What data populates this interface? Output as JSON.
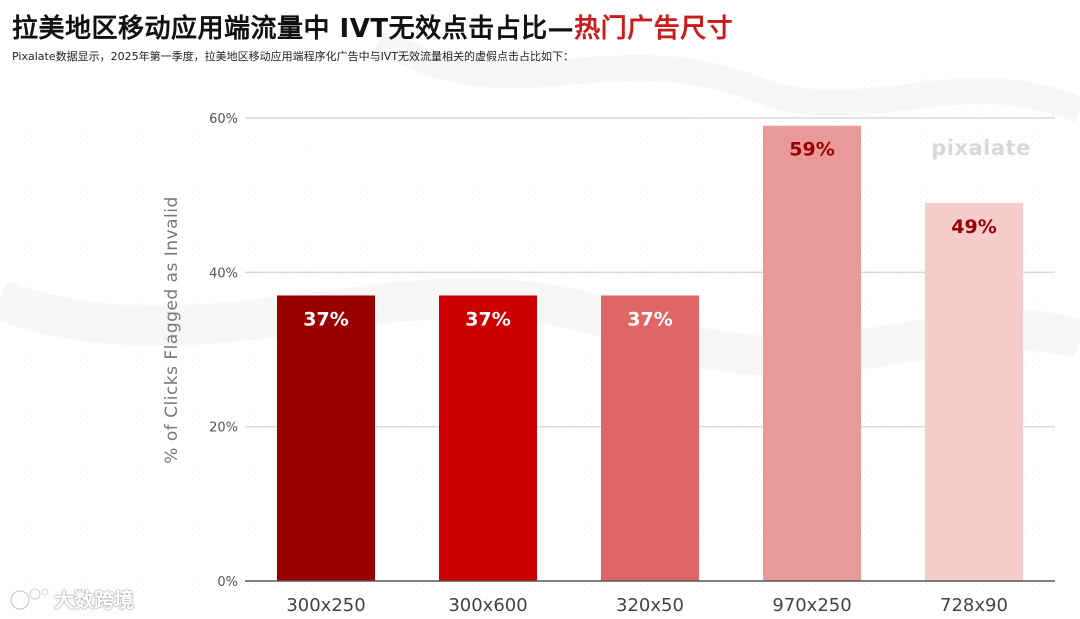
{
  "header": {
    "title_main": "拉美地区移动应用端流量中 IVT无效点击占比—",
    "title_highlight": "热门广告尺寸",
    "subtitle": "Pixalate数据显示，2025年第一季度，拉美地区移动应用端程序化广告中与IVT无效流量相关的虚假点击占比如下："
  },
  "watermark": "pixalate",
  "footer": {
    "brand": "大数跨境"
  },
  "colors": {
    "title_highlight": "#cc1a1a",
    "grid": "#d9d9d9",
    "axis": "#555555"
  },
  "chart_data": {
    "type": "bar",
    "categories": [
      "300x250",
      "300x600",
      "320x50",
      "970x250",
      "728x90"
    ],
    "values": [
      37,
      37,
      37,
      59,
      49
    ],
    "data_labels": [
      "37%",
      "37%",
      "37%",
      "59%",
      "49%"
    ],
    "colors": [
      "#990000",
      "#cc0000",
      "#e06666",
      "#ea9999",
      "#f4cccc"
    ],
    "label_colors": [
      "#ffffff",
      "#ffffff",
      "#ffffff",
      "#990000",
      "#990000"
    ],
    "ylabel": "% of Clicks Flagged as Invalid",
    "xlabel": "",
    "ylim": [
      0,
      60
    ],
    "yticks": [
      0,
      20,
      40,
      60
    ],
    "ytick_labels": [
      "0%",
      "20%",
      "40%",
      "60%"
    ],
    "grid": true,
    "legend": false
  }
}
